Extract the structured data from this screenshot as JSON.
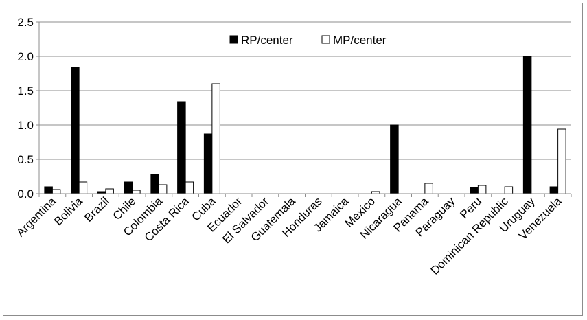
{
  "chart_data": {
    "type": "bar",
    "title": "",
    "xlabel": "",
    "ylabel": "",
    "ylim": [
      0,
      2.5
    ],
    "yticks": [
      "0.0",
      "0.5",
      "1.0",
      "1.5",
      "2.0",
      "2.5"
    ],
    "grid": true,
    "legend_position": "top-center",
    "categories": [
      "Argentina",
      "Bolivia",
      "Brazil",
      "Chile",
      "Colombia",
      "Costa Rica",
      "Cuba",
      "Ecuador",
      "El Salvador",
      "Guatemala",
      "Honduras",
      "Jamaica",
      "Mexico",
      "Nicaragua",
      "Panama",
      "Paraguay",
      "Peru",
      "Dominican Republic",
      "Uruguay",
      "Venezuela"
    ],
    "series": [
      {
        "name": "RP/center",
        "color": "#000000",
        "values": [
          0.1,
          1.84,
          0.03,
          0.17,
          0.28,
          1.34,
          0.87,
          0,
          0,
          0,
          0,
          0,
          0,
          1.0,
          0,
          0,
          0.09,
          0,
          2.0,
          0.1
        ]
      },
      {
        "name": "MP/center",
        "color": "#ffffff",
        "values": [
          0.06,
          0.17,
          0.07,
          0.05,
          0.13,
          0.17,
          1.6,
          0,
          0,
          0,
          0,
          0,
          0.03,
          0,
          0.15,
          0,
          0.12,
          0.1,
          0,
          0.94
        ]
      }
    ]
  }
}
